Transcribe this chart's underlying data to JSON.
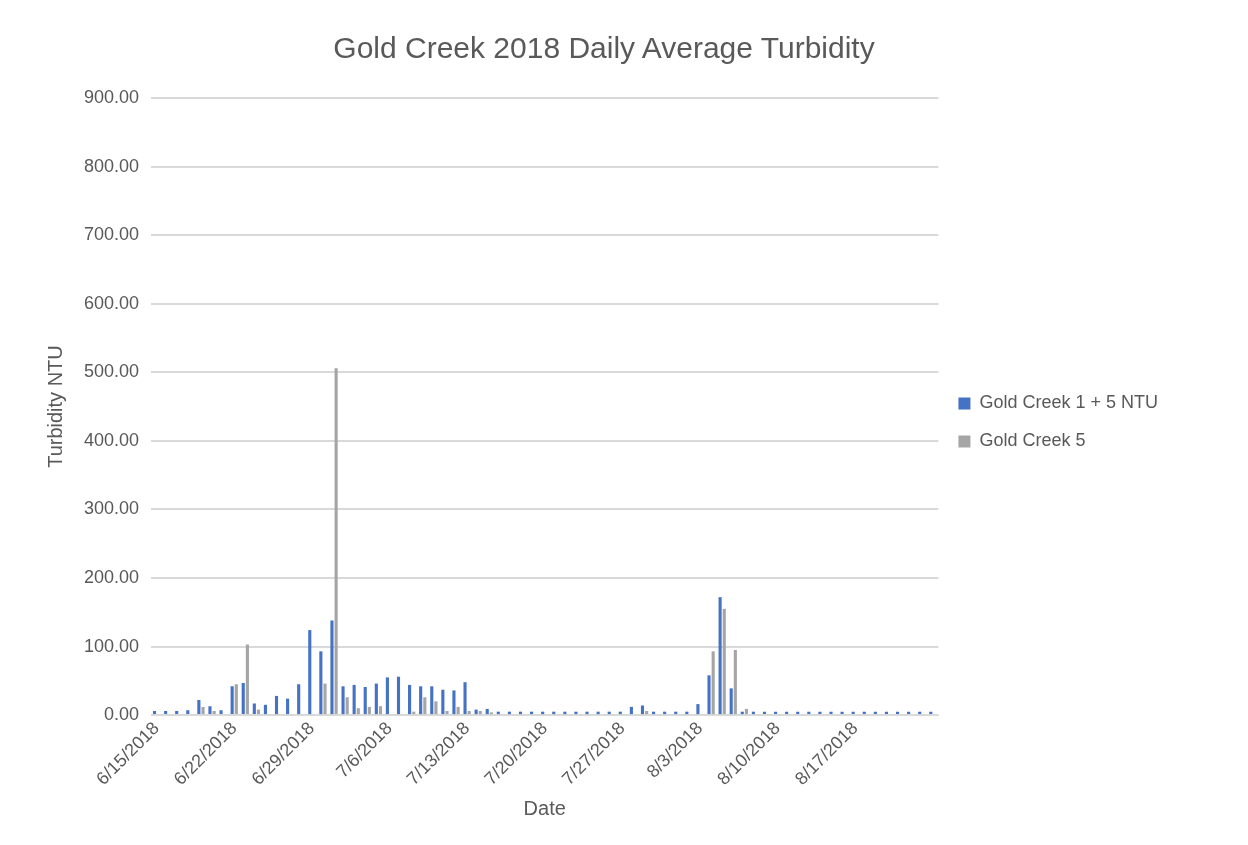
{
  "chart_data": {
    "type": "bar",
    "title": "Gold Creek 2018 Daily Average Turbidity",
    "xlabel": "Date",
    "ylabel": "Turbidity NTU",
    "categories": [
      "6/15/2018",
      null,
      null,
      null,
      null,
      null,
      null,
      "6/22/2018",
      null,
      null,
      null,
      null,
      null,
      null,
      "6/29/2018",
      null,
      null,
      null,
      null,
      null,
      null,
      "7/6/2018",
      null,
      null,
      null,
      null,
      null,
      null,
      "7/13/2018",
      null,
      null,
      null,
      null,
      null,
      null,
      "7/20/2018",
      null,
      null,
      null,
      null,
      null,
      null,
      "7/27/2018",
      null,
      null,
      null,
      null,
      null,
      null,
      "8/3/2018",
      null,
      null,
      null,
      null,
      null,
      null,
      "8/10/2018",
      null,
      null,
      null,
      null,
      null,
      null,
      "8/17/2018",
      null,
      null,
      null,
      null,
      null,
      null,
      null
    ],
    "series": [
      {
        "name": "Gold Creek 1 + 5 NTU",
        "color": "#4472c4",
        "values": [
          6,
          6,
          6,
          7,
          22,
          13,
          7,
          42,
          47,
          17,
          15,
          28,
          24,
          45,
          124,
          93,
          138,
          42,
          44,
          41,
          46,
          55,
          56,
          44,
          42,
          42,
          37,
          36,
          48,
          8,
          9,
          5,
          5,
          5,
          5,
          5,
          5,
          5,
          5,
          5,
          5,
          5,
          5,
          12,
          14,
          5,
          5,
          5,
          5,
          16,
          58,
          172,
          39,
          5,
          5,
          5,
          5,
          5,
          5,
          5,
          5,
          5,
          5,
          5,
          5,
          5,
          5,
          5,
          5,
          5,
          5
        ]
      },
      {
        "name": "Gold Creek 5",
        "color": "#a5a5a5",
        "values": [
          null,
          null,
          null,
          null,
          12,
          6,
          null,
          45,
          103,
          8,
          null,
          null,
          null,
          null,
          null,
          46,
          506,
          26,
          10,
          12,
          13,
          null,
          null,
          5,
          26,
          20,
          6,
          12,
          6,
          6,
          4,
          null,
          null,
          null,
          null,
          null,
          null,
          null,
          null,
          null,
          null,
          null,
          null,
          null,
          6,
          null,
          null,
          null,
          null,
          null,
          93,
          155,
          95,
          9,
          null,
          null,
          null,
          null,
          null,
          null,
          null,
          null,
          null,
          null,
          null,
          null,
          null,
          null,
          null,
          null,
          null
        ]
      }
    ],
    "ylim": [
      0,
      900
    ],
    "yticks": [
      {
        "value": 0,
        "label": "0.00"
      },
      {
        "value": 100,
        "label": "100.00"
      },
      {
        "value": 200,
        "label": "200.00"
      },
      {
        "value": 300,
        "label": "300.00"
      },
      {
        "value": 400,
        "label": "400.00"
      },
      {
        "value": 500,
        "label": "500.00"
      },
      {
        "value": 600,
        "label": "600.00"
      },
      {
        "value": 700,
        "label": "700.00"
      },
      {
        "value": 800,
        "label": "800.00"
      },
      {
        "value": 900,
        "label": "900.00"
      }
    ],
    "grid": "y",
    "legend": "right"
  }
}
